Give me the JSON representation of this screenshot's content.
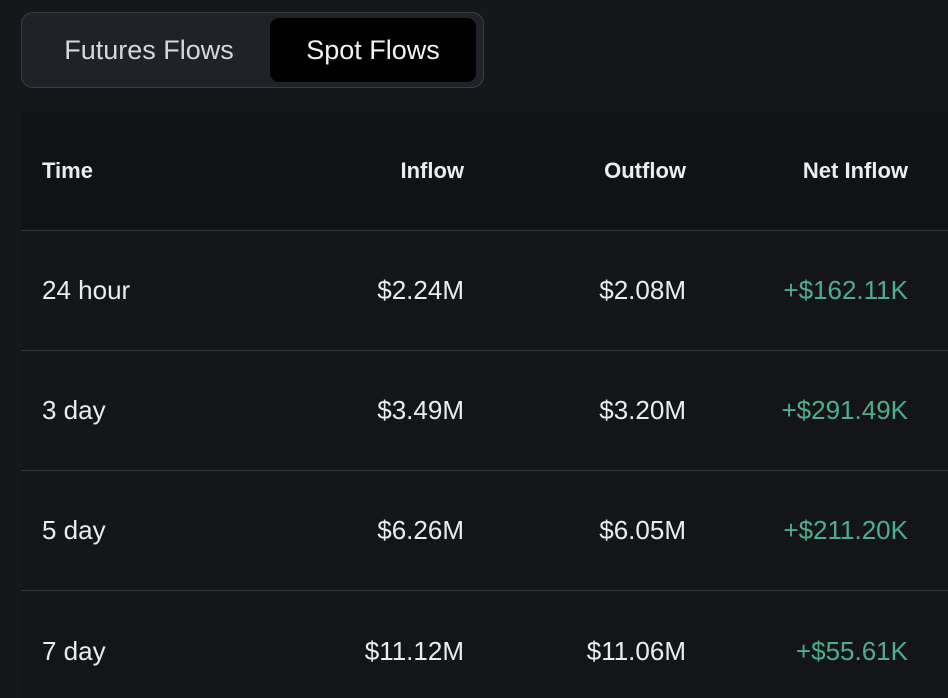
{
  "tabs": {
    "futures_label": "Futures Flows",
    "spot_label": "Spot Flows",
    "active": "Spot Flows"
  },
  "table": {
    "headers": {
      "time": "Time",
      "inflow": "Inflow",
      "outflow": "Outflow",
      "net_inflow": "Net Inflow"
    },
    "rows": [
      {
        "time": "24 hour",
        "inflow": "$2.24M",
        "outflow": "$2.08M",
        "net_inflow": "+$162.11K"
      },
      {
        "time": "3 day",
        "inflow": "$3.49M",
        "outflow": "$3.20M",
        "net_inflow": "+$291.49K"
      },
      {
        "time": "5 day",
        "inflow": "$6.26M",
        "outflow": "$6.05M",
        "net_inflow": "+$211.20K"
      },
      {
        "time": "7 day",
        "inflow": "$11.12M",
        "outflow": "$11.06M",
        "net_inflow": "+$55.61K"
      }
    ]
  },
  "colors": {
    "positive": "#4fae8a",
    "background": "#15171b",
    "active_tab": "#000000"
  }
}
